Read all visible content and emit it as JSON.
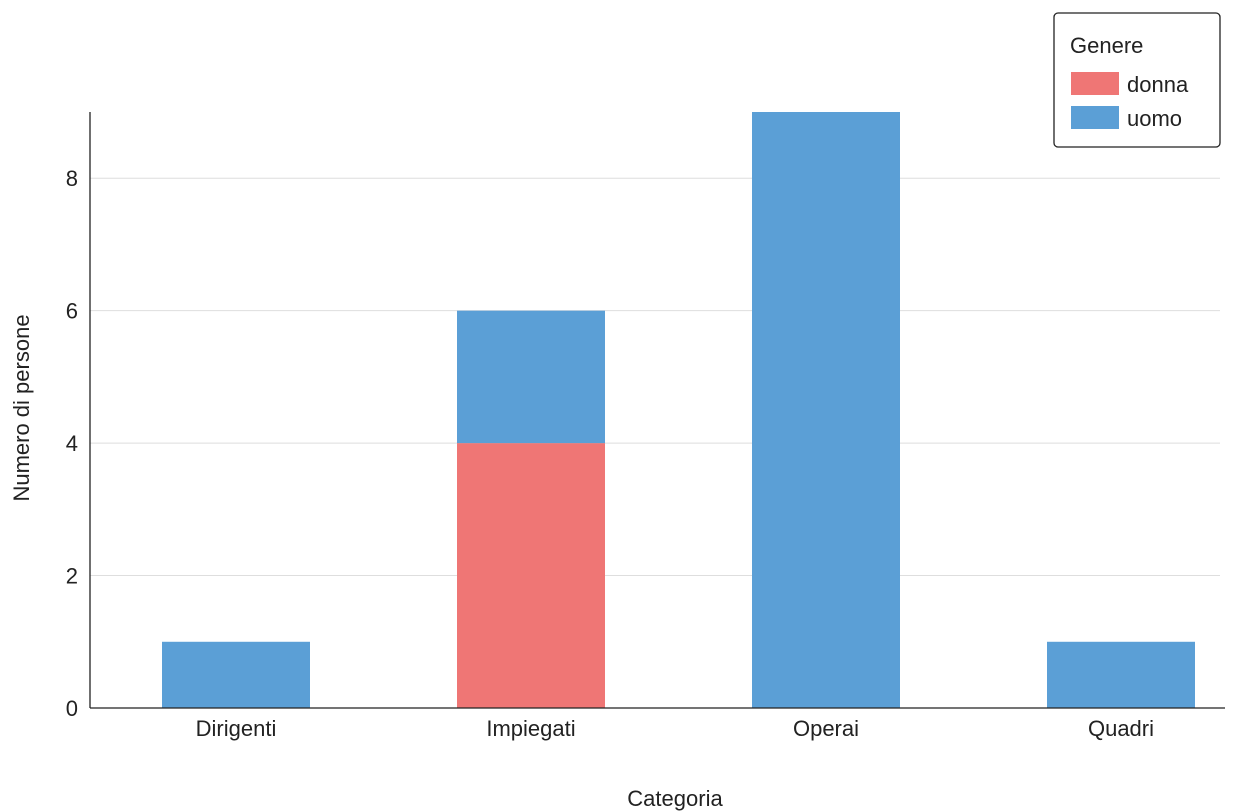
{
  "chart_data": {
    "type": "bar",
    "stacked": true,
    "categories": [
      "Dirigenti",
      "Impiegati",
      "Operai",
      "Quadri"
    ],
    "series": [
      {
        "name": "donna",
        "color": "#ef7675",
        "values": [
          0,
          4,
          0,
          0
        ]
      },
      {
        "name": "uomo",
        "color": "#5b9fd6",
        "values": [
          1,
          2,
          9,
          1
        ]
      }
    ],
    "xlabel": "Categoria",
    "ylabel": "Numero di persone",
    "ylim": [
      0,
      9
    ],
    "yticks": [
      0,
      2,
      4,
      6,
      8
    ],
    "grid": "horizontal",
    "legend": {
      "title": "Genere",
      "position": "top-right"
    }
  }
}
